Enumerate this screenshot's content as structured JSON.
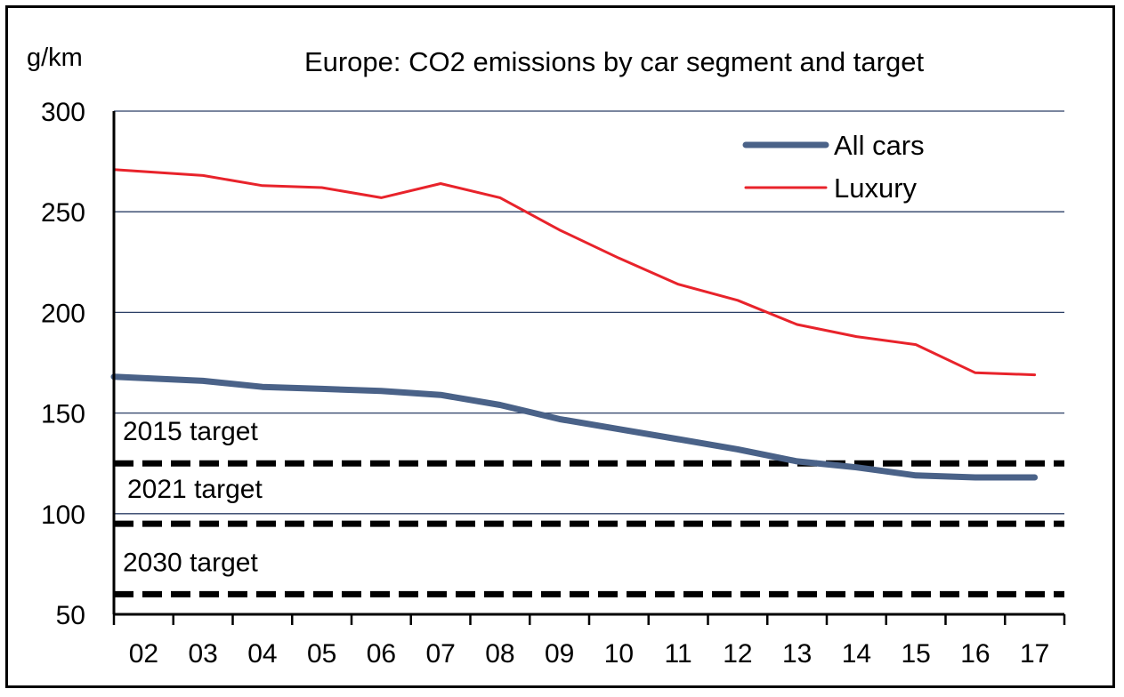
{
  "chart_data": {
    "type": "line",
    "title": "Europe: CO2 emissions by car segment and target",
    "ylabel": "g/km",
    "xlabel": "",
    "ylim": [
      50,
      300
    ],
    "yticks": [
      50,
      100,
      150,
      200,
      250,
      300
    ],
    "grid": true,
    "legend_position": "top-right",
    "categories": [
      "02",
      "03",
      "04",
      "05",
      "06",
      "07",
      "08",
      "09",
      "10",
      "11",
      "12",
      "13",
      "14",
      "15",
      "16",
      "17"
    ],
    "series": [
      {
        "name": "All cars",
        "color": "#4a6288",
        "values": [
          168,
          166,
          163,
          162,
          161,
          159,
          154,
          147,
          142,
          137,
          132,
          126,
          123,
          119,
          118,
          118
        ]
      },
      {
        "name": "Luxury",
        "color": "#e8232b",
        "values": [
          271,
          268,
          263,
          262,
          257,
          264,
          257,
          241,
          227,
          214,
          206,
          194,
          188,
          184,
          170,
          169
        ]
      }
    ],
    "targets": [
      {
        "label": "2015 target",
        "value": 125
      },
      {
        "label": "2021 target",
        "value": 95
      },
      {
        "label": "2030 target",
        "value": 60
      }
    ]
  }
}
